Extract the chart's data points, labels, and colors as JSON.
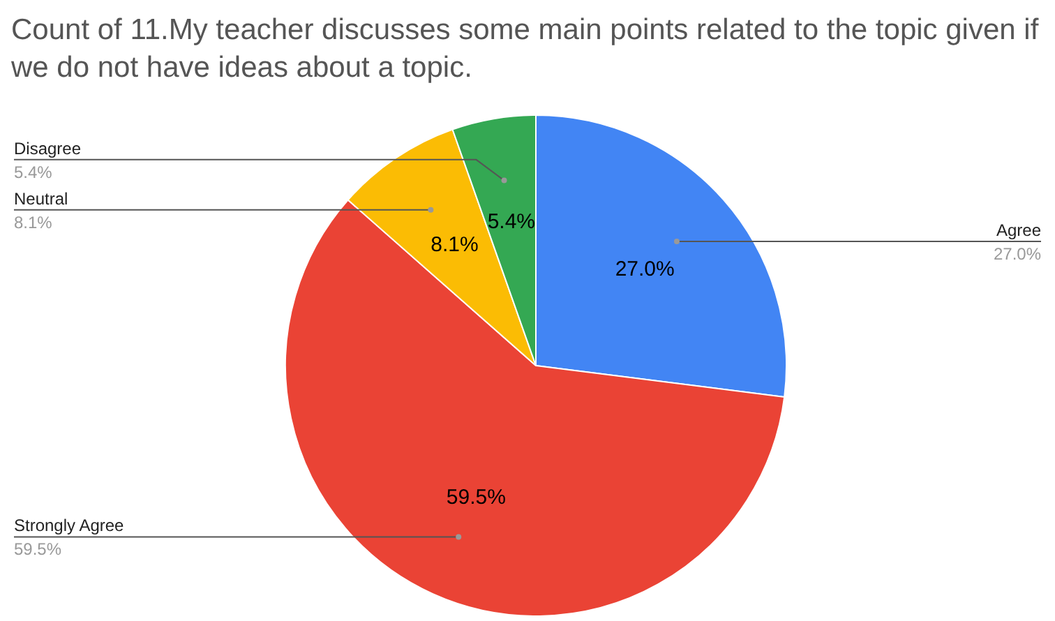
{
  "chart_data": {
    "type": "pie",
    "title": "Count of 11.My teacher discusses some main points related to the topic given if we do not have ideas about a topic.",
    "categories": [
      "Agree",
      "Strongly Agree",
      "Neutral",
      "Disagree"
    ],
    "values": [
      27.0,
      59.5,
      8.1,
      5.4
    ],
    "value_labels": [
      "27.0%",
      "59.5%",
      "8.1%",
      "5.4%"
    ],
    "colors": [
      "#4285f4",
      "#ea4335",
      "#fbbc04",
      "#34a853"
    ],
    "legend": false
  }
}
